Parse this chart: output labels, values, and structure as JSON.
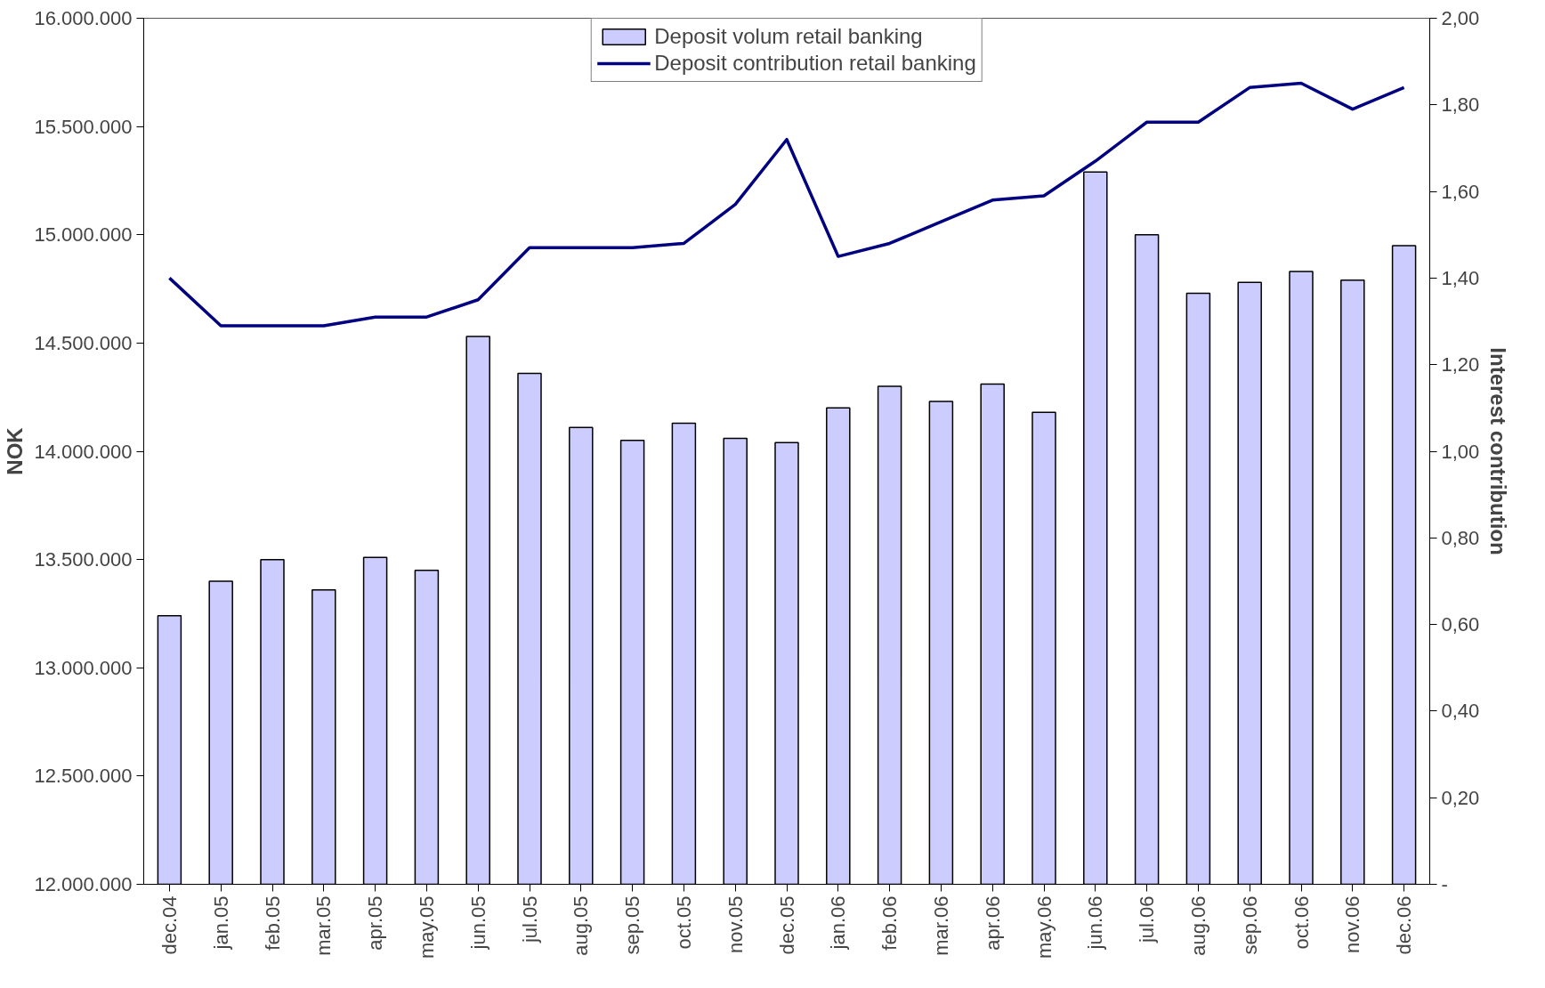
{
  "chart_data": {
    "type": "bar",
    "categories": [
      "dec.04",
      "jan.05",
      "feb.05",
      "mar.05",
      "apr.05",
      "may.05",
      "jun.05",
      "jul.05",
      "aug.05",
      "sep.05",
      "oct.05",
      "nov.05",
      "dec.05",
      "jan.06",
      "feb.06",
      "mar.06",
      "apr.06",
      "may.06",
      "jun.06",
      "jul.06",
      "aug.06",
      "sep.06",
      "oct.06",
      "nov.06",
      "dec.06"
    ],
    "series": [
      {
        "name": "Deposit volum retail banking",
        "color": "#ccccff",
        "values": [
          13240000,
          13400000,
          13500000,
          13360000,
          13510000,
          13450000,
          14530000,
          14360000,
          14110000,
          14050000,
          14130000,
          14060000,
          14040000,
          14200000,
          14300000,
          14230000,
          14310000,
          14180000,
          15290000,
          15000000,
          14730000,
          14780000,
          14830000,
          14790000,
          14950000
        ]
      },
      {
        "name": "Deposit contribution retail banking",
        "type": "line",
        "axis": "y2",
        "color": "#000080",
        "values": [
          1.4,
          1.29,
          1.29,
          1.29,
          1.31,
          1.31,
          1.35,
          1.47,
          1.47,
          1.47,
          1.48,
          1.57,
          1.72,
          1.45,
          1.48,
          1.53,
          1.58,
          1.59,
          1.67,
          1.76,
          1.76,
          1.84,
          1.85,
          1.79,
          1.84
        ]
      }
    ],
    "ylabel": "NOK",
    "y2label": "Interest contribution",
    "ylim": [
      12000000,
      16000000
    ],
    "yticks": [
      {
        "value": 12000000,
        "label": "12.000.000"
      },
      {
        "value": 12500000,
        "label": "12.500.000"
      },
      {
        "value": 13000000,
        "label": "13.000.000"
      },
      {
        "value": 13500000,
        "label": "13.500.000"
      },
      {
        "value": 14000000,
        "label": "14.000.000"
      },
      {
        "value": 14500000,
        "label": "14.500.000"
      },
      {
        "value": 15000000,
        "label": "15.000.000"
      },
      {
        "value": 15500000,
        "label": "15.500.000"
      },
      {
        "value": 16000000,
        "label": "16.000.000"
      }
    ],
    "y2lim": [
      0,
      2
    ],
    "y2ticks": [
      {
        "value": 0,
        "label": "-"
      },
      {
        "value": 0.2,
        "label": "0,20"
      },
      {
        "value": 0.4,
        "label": "0,40"
      },
      {
        "value": 0.6,
        "label": "0,60"
      },
      {
        "value": 0.8,
        "label": "0,80"
      },
      {
        "value": 1.0,
        "label": "1,00"
      },
      {
        "value": 1.2,
        "label": "1,20"
      },
      {
        "value": 1.4,
        "label": "1,40"
      },
      {
        "value": 1.6,
        "label": "1,60"
      },
      {
        "value": 1.8,
        "label": "1,80"
      },
      {
        "value": 2.0,
        "label": "2,00"
      }
    ],
    "legend": "top",
    "grid": false
  }
}
